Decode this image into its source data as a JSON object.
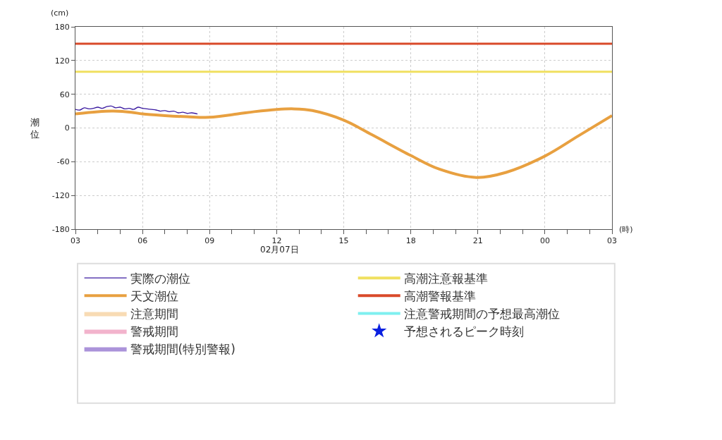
{
  "chart_data": {
    "type": "line",
    "ylabel": "潮位",
    "annotations": [
      "(cm)",
      "(時)",
      "02月07日"
    ],
    "xlim": [
      3,
      27
    ],
    "xticks": [
      {
        "value": 3,
        "label": "03"
      },
      {
        "value": 4,
        "label": null
      },
      {
        "value": 5,
        "label": null
      },
      {
        "value": 6,
        "label": "06"
      },
      {
        "value": 7,
        "label": null
      },
      {
        "value": 8,
        "label": null
      },
      {
        "value": 9,
        "label": "09"
      },
      {
        "value": 10,
        "label": null
      },
      {
        "value": 11,
        "label": null
      },
      {
        "value": 12,
        "label": "12"
      },
      {
        "value": 13,
        "label": null
      },
      {
        "value": 14,
        "label": null
      },
      {
        "value": 15,
        "label": "15"
      },
      {
        "value": 16,
        "label": null
      },
      {
        "value": 17,
        "label": null
      },
      {
        "value": 18,
        "label": "18"
      },
      {
        "value": 19,
        "label": null
      },
      {
        "value": 20,
        "label": null
      },
      {
        "value": 21,
        "label": "21"
      },
      {
        "value": 22,
        "label": null
      },
      {
        "value": 23,
        "label": null
      },
      {
        "value": 24,
        "label": "00"
      },
      {
        "value": 25,
        "label": null
      },
      {
        "value": 26,
        "label": null
      },
      {
        "value": 27,
        "label": "03"
      }
    ],
    "ylim": [
      -180,
      180
    ],
    "yticks": [
      -180,
      -120,
      -60,
      0,
      60,
      120,
      180
    ],
    "grid": true,
    "legend": "bottom",
    "ref_lines": [
      {
        "axis": "y",
        "value": 100,
        "label": "高潮注意報基準",
        "color": "#f0e060"
      },
      {
        "axis": "y",
        "value": 150,
        "label": "高潮警報基準",
        "color": "#d94a2a"
      }
    ],
    "series": [
      {
        "name": "実際の潮位",
        "color": "#3a1aa0",
        "x": [
          3,
          3.2,
          3.4,
          3.6,
          3.8,
          4,
          4.2,
          4.4,
          4.6,
          4.8,
          5,
          5.2,
          5.4,
          5.6,
          5.8,
          6,
          6.2,
          6.4,
          6.6,
          6.8,
          7,
          7.2,
          7.4,
          7.6,
          7.8,
          8,
          8.2,
          8.46
        ],
        "values": [
          33,
          32,
          36,
          34,
          35,
          37,
          35,
          38,
          39,
          36,
          37,
          34,
          35,
          33,
          37,
          35,
          34,
          33,
          32,
          30,
          31,
          29,
          30,
          27,
          28,
          26,
          27,
          25
        ]
      },
      {
        "name": "天文潮位",
        "color": "#e8a040",
        "x": [
          3,
          4,
          4.7,
          5.5,
          6,
          7,
          8,
          9,
          10.26,
          11,
          12,
          12.78,
          13.6,
          15,
          16.26,
          18,
          19.26,
          20.94,
          22.26,
          24,
          25.5,
          27
        ],
        "values": [
          25,
          29,
          30,
          28,
          25,
          22,
          20,
          19,
          25,
          29,
          33,
          34,
          31,
          14,
          -12,
          -49,
          -73,
          -88,
          -79,
          -50,
          -14,
          22
        ]
      },
      {
        "name": "注意期間",
        "type": "area",
        "color": "#f8dbb4"
      },
      {
        "name": "警戒期間",
        "type": "area",
        "color": "#f2b3cc"
      },
      {
        "name": "警戒期間(特別警報)",
        "type": "area",
        "color": "#ab93da"
      },
      {
        "name": "注意警戒期間の予想最高潮位",
        "type": "line",
        "color": "#7ef0f0"
      },
      {
        "name": "予想されるピーク時刻",
        "type": "scatter",
        "marker": "star",
        "color": "#0a20e0"
      }
    ]
  }
}
